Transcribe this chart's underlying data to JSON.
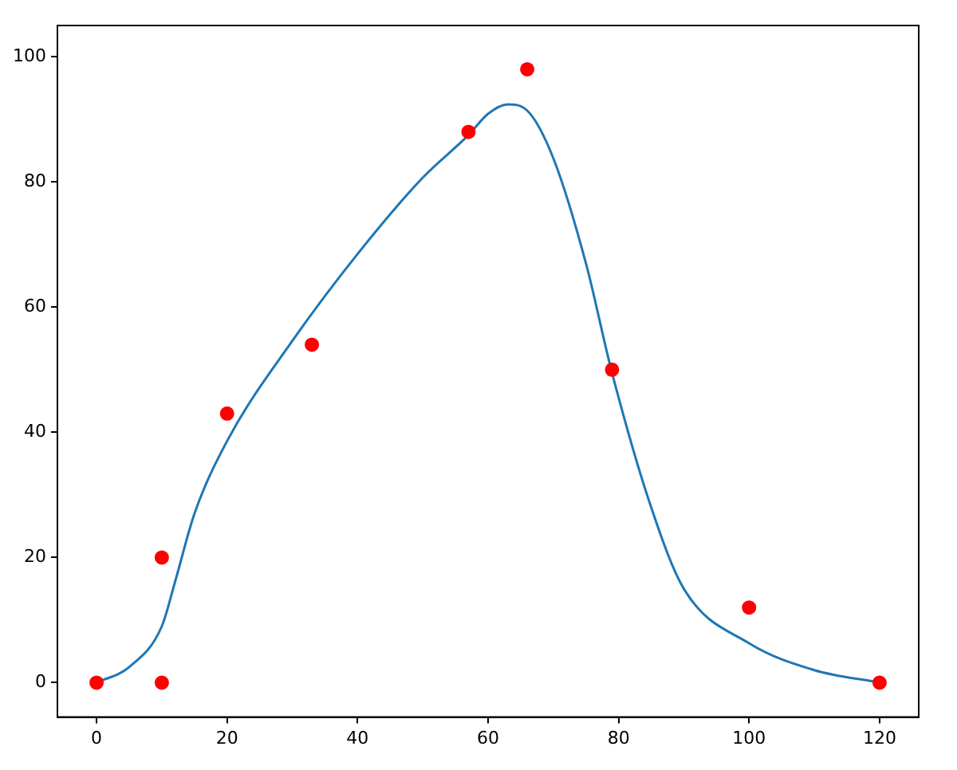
{
  "chart_data": {
    "type": "scatter",
    "xlim": [
      -6,
      126
    ],
    "ylim": [
      -5.5,
      105
    ],
    "xticks": [
      0,
      20,
      40,
      60,
      80,
      100,
      120
    ],
    "yticks": [
      0,
      20,
      40,
      60,
      80,
      100
    ],
    "grid": false,
    "legend": false,
    "series": [
      {
        "color": "#ff0000",
        "marker": "circle",
        "x": [
          0,
          10,
          10,
          20,
          33,
          57,
          66,
          79,
          100,
          120
        ],
        "values": [
          0,
          20,
          0,
          43,
          54,
          88,
          98,
          50,
          12,
          0
        ]
      },
      {
        "type": "line",
        "color": "#1f77b4",
        "marker": "none",
        "line_style": "solid",
        "x": [
          0,
          5,
          10,
          12,
          15,
          20,
          30,
          40,
          50,
          57,
          60,
          63,
          66,
          70,
          75,
          79,
          85,
          90,
          100,
          110,
          120
        ],
        "values": [
          0,
          2.5,
          9,
          16,
          27,
          38.6,
          54.6,
          68.5,
          80.7,
          87.5,
          90.9,
          92.4,
          91.4,
          83.8,
          67,
          49.5,
          28,
          15,
          6.3,
          2,
          0
        ]
      }
    ]
  }
}
